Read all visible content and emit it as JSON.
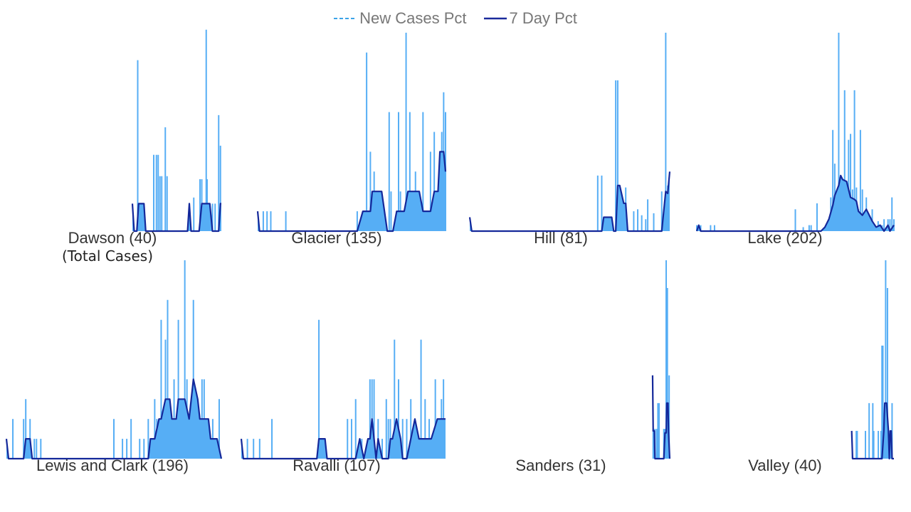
{
  "legend": [
    {
      "label": "New Cases Pct",
      "style": "dashed",
      "color": "#3ba3e8"
    },
    {
      "label": "7 Day Pct",
      "style": "solid",
      "color": "#1a2a9c"
    }
  ],
  "colors": {
    "bars": "#56aef5",
    "line": "#14289a",
    "area": "#56aef5"
  },
  "chart_data": [
    {
      "type": "bar",
      "panel": "Dawson",
      "title": "Dawson (40)",
      "subtitle": "(Total Cases)",
      "ylim": [
        0,
        6.5
      ],
      "bars": [
        [
          0.06,
          5.6
        ],
        [
          0.24,
          2.5
        ],
        [
          0.27,
          2.5
        ],
        [
          0.29,
          2.5
        ],
        [
          0.31,
          1.8
        ],
        [
          0.33,
          1.8
        ],
        [
          0.37,
          3.4
        ],
        [
          0.39,
          1.8
        ],
        [
          0.69,
          1.1
        ],
        [
          0.76,
          1.7
        ],
        [
          0.78,
          1.7
        ],
        [
          0.83,
          6.6
        ],
        [
          0.84,
          1.7
        ],
        [
          0.87,
          0.9
        ],
        [
          0.9,
          0.9
        ],
        [
          0.93,
          0.9
        ],
        [
          0.97,
          3.8
        ],
        [
          0.99,
          2.8
        ]
      ],
      "line": [
        [
          0.0,
          0.9
        ],
        [
          0.02,
          0.0
        ],
        [
          0.05,
          0.0
        ],
        [
          0.07,
          0.9
        ],
        [
          0.13,
          0.9
        ],
        [
          0.15,
          0.0
        ],
        [
          0.62,
          0.0
        ],
        [
          0.64,
          0.9
        ],
        [
          0.66,
          0.0
        ],
        [
          0.75,
          0.0
        ],
        [
          0.78,
          0.9
        ],
        [
          0.87,
          0.9
        ],
        [
          0.9,
          0.0
        ],
        [
          0.97,
          0.0
        ],
        [
          0.99,
          0.9
        ],
        [
          1.0,
          0.9
        ]
      ]
    },
    {
      "type": "bar",
      "panel": "Glacier",
      "title": "Glacier (135)",
      "ylim": [
        0,
        10
      ],
      "bars": [
        [
          0.03,
          1.0
        ],
        [
          0.05,
          1.0
        ],
        [
          0.07,
          1.0
        ],
        [
          0.15,
          1.0
        ],
        [
          0.53,
          1.0
        ],
        [
          0.58,
          9.0
        ],
        [
          0.6,
          4.0
        ],
        [
          0.62,
          3.0
        ],
        [
          0.65,
          2.0
        ],
        [
          0.7,
          6.0
        ],
        [
          0.71,
          2.0
        ],
        [
          0.75,
          6.0
        ],
        [
          0.76,
          2.0
        ],
        [
          0.79,
          10.0
        ],
        [
          0.81,
          6.0
        ],
        [
          0.82,
          2.0
        ],
        [
          0.84,
          3.0
        ],
        [
          0.86,
          2.0
        ],
        [
          0.88,
          6.0
        ],
        [
          0.9,
          1.0
        ],
        [
          0.92,
          4.0
        ],
        [
          0.94,
          5.0
        ],
        [
          0.96,
          2.0
        ],
        [
          0.98,
          5.0
        ],
        [
          0.99,
          7.0
        ],
        [
          1.0,
          6.0
        ]
      ],
      "line": [
        [
          0.0,
          1.0
        ],
        [
          0.01,
          0.0
        ],
        [
          0.53,
          0.0
        ],
        [
          0.56,
          1.0
        ],
        [
          0.6,
          1.0
        ],
        [
          0.61,
          2.0
        ],
        [
          0.66,
          2.0
        ],
        [
          0.69,
          0.0
        ],
        [
          0.72,
          0.0
        ],
        [
          0.74,
          1.0
        ],
        [
          0.78,
          1.0
        ],
        [
          0.8,
          2.0
        ],
        [
          0.86,
          2.0
        ],
        [
          0.88,
          1.0
        ],
        [
          0.92,
          1.0
        ],
        [
          0.94,
          2.0
        ],
        [
          0.96,
          2.0
        ],
        [
          0.97,
          4.0
        ],
        [
          0.99,
          4.0
        ],
        [
          1.0,
          3.0
        ]
      ]
    },
    {
      "type": "bar",
      "panel": "Hill",
      "title": "Hill (81)",
      "ylim": [
        0,
        10
      ],
      "bars": [
        [
          0.64,
          2.8
        ],
        [
          0.66,
          2.8
        ],
        [
          0.73,
          7.6
        ],
        [
          0.74,
          7.6
        ],
        [
          0.78,
          2.2
        ],
        [
          0.82,
          1.0
        ],
        [
          0.84,
          1.1
        ],
        [
          0.86,
          0.8
        ],
        [
          0.88,
          0.6
        ],
        [
          0.89,
          1.6
        ],
        [
          0.92,
          0.9
        ],
        [
          0.96,
          2.0
        ],
        [
          0.98,
          10.0
        ],
        [
          0.99,
          2.3
        ]
      ],
      "line": [
        [
          0.0,
          0.7
        ],
        [
          0.01,
          0.0
        ],
        [
          0.66,
          0.0
        ],
        [
          0.67,
          0.7
        ],
        [
          0.71,
          0.7
        ],
        [
          0.72,
          0.0
        ],
        [
          0.73,
          0.0
        ],
        [
          0.74,
          2.3
        ],
        [
          0.75,
          2.3
        ],
        [
          0.77,
          1.4
        ],
        [
          0.78,
          1.4
        ],
        [
          0.79,
          0.0
        ],
        [
          0.96,
          0.0
        ],
        [
          0.98,
          2.0
        ],
        [
          0.99,
          1.9
        ],
        [
          1.0,
          3.0
        ]
      ]
    },
    {
      "type": "bar",
      "panel": "Lake",
      "title": "Lake (202)",
      "ylim": [
        0,
        10
      ],
      "bars": [
        [
          0.0,
          0.3
        ],
        [
          0.02,
          0.3
        ],
        [
          0.07,
          0.3
        ],
        [
          0.09,
          0.3
        ],
        [
          0.5,
          1.1
        ],
        [
          0.54,
          0.2
        ],
        [
          0.57,
          0.3
        ],
        [
          0.58,
          0.3
        ],
        [
          0.61,
          1.4
        ],
        [
          0.67,
          0.6
        ],
        [
          0.68,
          1.7
        ],
        [
          0.69,
          5.1
        ],
        [
          0.7,
          3.4
        ],
        [
          0.71,
          1.7
        ],
        [
          0.72,
          10.0
        ],
        [
          0.73,
          2.3
        ],
        [
          0.74,
          2.3
        ],
        [
          0.75,
          7.1
        ],
        [
          0.76,
          2.5
        ],
        [
          0.77,
          4.6
        ],
        [
          0.78,
          4.9
        ],
        [
          0.79,
          2.1
        ],
        [
          0.8,
          7.1
        ],
        [
          0.81,
          2.2
        ],
        [
          0.82,
          1.1
        ],
        [
          0.83,
          5.1
        ],
        [
          0.84,
          2.1
        ],
        [
          0.86,
          1.7
        ],
        [
          0.88,
          0.6
        ],
        [
          0.89,
          1.1
        ],
        [
          0.92,
          0.5
        ],
        [
          0.94,
          0.3
        ],
        [
          0.95,
          0.6
        ],
        [
          0.97,
          0.6
        ],
        [
          0.98,
          0.6
        ],
        [
          0.99,
          1.7
        ],
        [
          1.0,
          0.6
        ]
      ],
      "line": [
        [
          0.0,
          0.0
        ],
        [
          0.01,
          0.3
        ],
        [
          0.02,
          0.0
        ],
        [
          0.63,
          0.0
        ],
        [
          0.65,
          0.2
        ],
        [
          0.67,
          0.6
        ],
        [
          0.69,
          1.3
        ],
        [
          0.7,
          1.8
        ],
        [
          0.72,
          2.3
        ],
        [
          0.73,
          2.8
        ],
        [
          0.74,
          2.6
        ],
        [
          0.76,
          2.5
        ],
        [
          0.78,
          1.7
        ],
        [
          0.8,
          1.6
        ],
        [
          0.81,
          1.5
        ],
        [
          0.82,
          1.0
        ],
        [
          0.84,
          0.8
        ],
        [
          0.86,
          1.1
        ],
        [
          0.88,
          0.7
        ],
        [
          0.89,
          0.5
        ],
        [
          0.91,
          0.2
        ],
        [
          0.93,
          0.3
        ],
        [
          0.95,
          0.0
        ],
        [
          0.97,
          0.3
        ],
        [
          0.98,
          0.0
        ],
        [
          1.0,
          0.3
        ]
      ]
    },
    {
      "type": "bar",
      "panel": "Lewis and Clark",
      "title": "Lewis and Clark (196)",
      "ylim": [
        0,
        10
      ],
      "bars": [
        [
          0.03,
          2.0
        ],
        [
          0.08,
          2.0
        ],
        [
          0.09,
          3.0
        ],
        [
          0.11,
          2.0
        ],
        [
          0.13,
          1.0
        ],
        [
          0.14,
          1.0
        ],
        [
          0.16,
          1.0
        ],
        [
          0.5,
          2.0
        ],
        [
          0.54,
          1.0
        ],
        [
          0.56,
          1.0
        ],
        [
          0.58,
          2.0
        ],
        [
          0.62,
          1.0
        ],
        [
          0.64,
          1.0
        ],
        [
          0.66,
          2.0
        ],
        [
          0.68,
          1.0
        ],
        [
          0.69,
          3.0
        ],
        [
          0.7,
          2.0
        ],
        [
          0.72,
          7.0
        ],
        [
          0.74,
          6.0
        ],
        [
          0.75,
          8.0
        ],
        [
          0.78,
          4.0
        ],
        [
          0.8,
          7.0
        ],
        [
          0.83,
          10.0
        ],
        [
          0.84,
          4.0
        ],
        [
          0.86,
          3.0
        ],
        [
          0.87,
          8.0
        ],
        [
          0.89,
          2.0
        ],
        [
          0.91,
          4.0
        ],
        [
          0.92,
          4.0
        ],
        [
          0.94,
          2.0
        ],
        [
          0.96,
          2.0
        ],
        [
          0.99,
          3.0
        ]
      ],
      "line": [
        [
          0.0,
          1.0
        ],
        [
          0.01,
          0.0
        ],
        [
          0.08,
          0.0
        ],
        [
          0.09,
          1.0
        ],
        [
          0.11,
          1.0
        ],
        [
          0.12,
          0.0
        ],
        [
          0.66,
          0.0
        ],
        [
          0.67,
          1.0
        ],
        [
          0.69,
          1.0
        ],
        [
          0.71,
          2.0
        ],
        [
          0.72,
          2.0
        ],
        [
          0.74,
          3.0
        ],
        [
          0.76,
          3.0
        ],
        [
          0.77,
          2.0
        ],
        [
          0.79,
          2.0
        ],
        [
          0.8,
          3.0
        ],
        [
          0.83,
          3.0
        ],
        [
          0.85,
          2.0
        ],
        [
          0.86,
          3.0
        ],
        [
          0.87,
          4.0
        ],
        [
          0.89,
          3.0
        ],
        [
          0.9,
          2.0
        ],
        [
          0.93,
          2.0
        ],
        [
          0.94,
          2.0
        ],
        [
          0.95,
          1.0
        ],
        [
          0.98,
          1.0
        ],
        [
          1.0,
          0.0
        ]
      ]
    },
    {
      "type": "bar",
      "panel": "Ravalli",
      "title": "Ravalli (107)",
      "ylim": [
        0,
        10
      ],
      "bars": [
        [
          0.03,
          1.0
        ],
        [
          0.06,
          1.0
        ],
        [
          0.09,
          1.0
        ],
        [
          0.15,
          2.0
        ],
        [
          0.38,
          7.0
        ],
        [
          0.52,
          2.0
        ],
        [
          0.54,
          2.0
        ],
        [
          0.56,
          3.0
        ],
        [
          0.59,
          1.0
        ],
        [
          0.63,
          4.0
        ],
        [
          0.64,
          4.0
        ],
        [
          0.65,
          4.0
        ],
        [
          0.67,
          2.0
        ],
        [
          0.69,
          1.0
        ],
        [
          0.71,
          3.0
        ],
        [
          0.72,
          2.0
        ],
        [
          0.73,
          2.0
        ],
        [
          0.75,
          6.0
        ],
        [
          0.77,
          4.0
        ],
        [
          0.79,
          2.0
        ],
        [
          0.81,
          2.0
        ],
        [
          0.83,
          3.0
        ],
        [
          0.85,
          2.0
        ],
        [
          0.88,
          6.0
        ],
        [
          0.9,
          3.0
        ],
        [
          0.92,
          2.0
        ],
        [
          0.95,
          4.0
        ],
        [
          0.97,
          2.0
        ],
        [
          0.98,
          3.0
        ],
        [
          0.99,
          4.0
        ]
      ],
      "line": [
        [
          0.0,
          1.0
        ],
        [
          0.01,
          0.0
        ],
        [
          0.37,
          0.0
        ],
        [
          0.38,
          1.0
        ],
        [
          0.41,
          1.0
        ],
        [
          0.42,
          0.0
        ],
        [
          0.56,
          0.0
        ],
        [
          0.58,
          1.0
        ],
        [
          0.6,
          0.0
        ],
        [
          0.62,
          1.0
        ],
        [
          0.63,
          1.0
        ],
        [
          0.64,
          2.0
        ],
        [
          0.65,
          1.0
        ],
        [
          0.66,
          0.0
        ],
        [
          0.67,
          1.0
        ],
        [
          0.69,
          0.0
        ],
        [
          0.72,
          0.0
        ],
        [
          0.73,
          1.0
        ],
        [
          0.74,
          1.0
        ],
        [
          0.76,
          2.0
        ],
        [
          0.78,
          1.0
        ],
        [
          0.79,
          0.0
        ],
        [
          0.81,
          0.0
        ],
        [
          0.83,
          1.0
        ],
        [
          0.85,
          2.0
        ],
        [
          0.87,
          1.0
        ],
        [
          0.9,
          1.0
        ],
        [
          0.93,
          1.0
        ],
        [
          0.96,
          2.0
        ],
        [
          1.0,
          2.0
        ]
      ]
    },
    {
      "type": "bar",
      "panel": "Sanders",
      "title": "Sanders (31)",
      "ylim": [
        0,
        10
      ],
      "bars": [
        [
          0.72,
          1.5
        ],
        [
          0.75,
          1.5
        ],
        [
          0.78,
          1.5
        ],
        [
          0.8,
          2.8
        ],
        [
          0.82,
          2.8
        ],
        [
          0.9,
          1.5
        ],
        [
          0.92,
          1.5
        ],
        [
          0.94,
          10.0
        ],
        [
          0.96,
          8.6
        ],
        [
          0.99,
          4.2
        ]
      ],
      "line": [
        [
          0.71,
          4.2
        ],
        [
          0.72,
          1.4
        ],
        [
          0.74,
          1.4
        ],
        [
          0.75,
          0.0
        ],
        [
          0.9,
          0.0
        ],
        [
          0.92,
          1.3
        ],
        [
          0.94,
          1.3
        ],
        [
          0.95,
          2.8
        ],
        [
          0.97,
          2.8
        ],
        [
          0.98,
          1.3
        ],
        [
          1.0,
          0.0
        ]
      ]
    },
    {
      "type": "bar",
      "panel": "Valley",
      "title": "Valley (40)",
      "ylim": [
        0,
        10
      ],
      "bars": [
        [
          0.59,
          1.4
        ],
        [
          0.6,
          1.4
        ],
        [
          0.69,
          1.4
        ],
        [
          0.73,
          2.8
        ],
        [
          0.77,
          2.8
        ],
        [
          0.78,
          1.4
        ],
        [
          0.83,
          1.4
        ],
        [
          0.86,
          1.4
        ],
        [
          0.87,
          5.7
        ],
        [
          0.88,
          5.7
        ],
        [
          0.91,
          10.0
        ],
        [
          0.93,
          8.6
        ],
        [
          0.96,
          1.4
        ],
        [
          0.98,
          2.8
        ]
      ],
      "line": [
        [
          0.54,
          1.4
        ],
        [
          0.55,
          0.0
        ],
        [
          0.87,
          0.0
        ],
        [
          0.89,
          1.4
        ],
        [
          0.9,
          2.8
        ],
        [
          0.92,
          2.8
        ],
        [
          0.94,
          1.4
        ],
        [
          0.95,
          0.0
        ],
        [
          0.96,
          1.4
        ],
        [
          0.97,
          1.4
        ],
        [
          0.98,
          0.0
        ],
        [
          1.0,
          0.0
        ]
      ]
    }
  ]
}
